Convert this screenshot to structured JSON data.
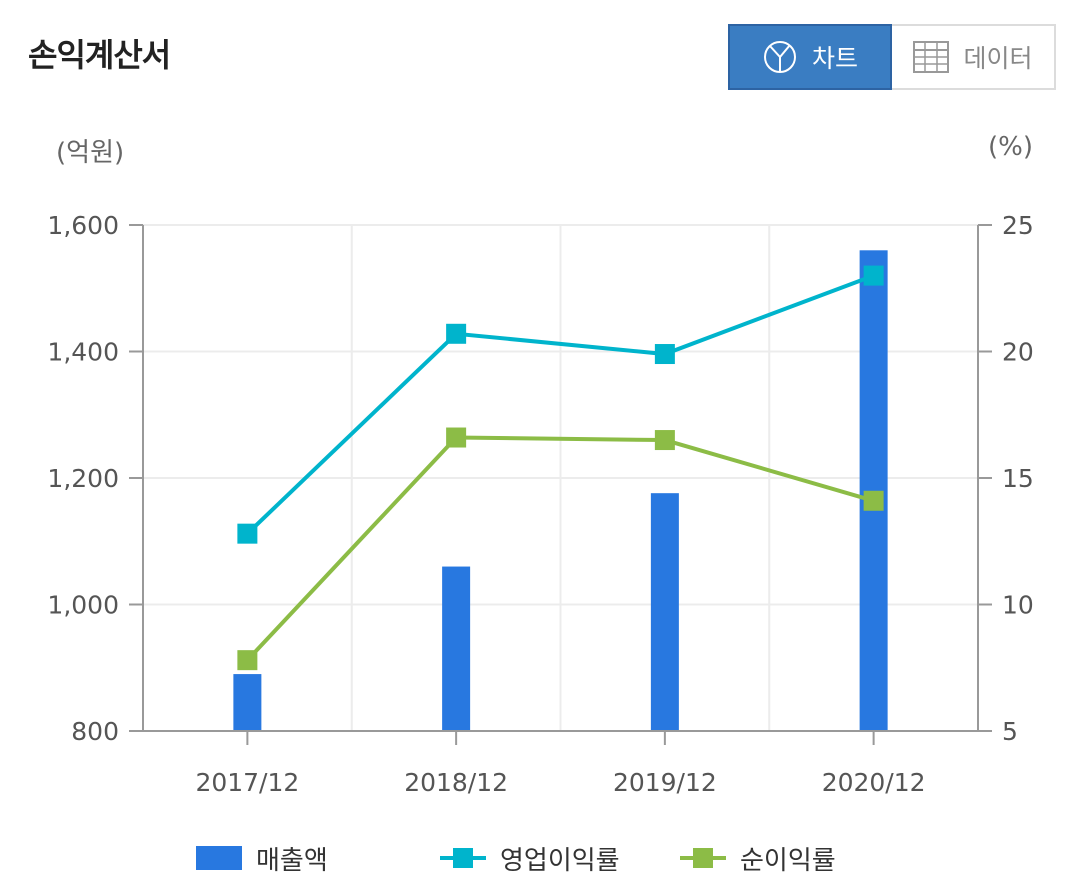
{
  "page": {
    "title": "손익계산서"
  },
  "view_toggle": {
    "chart_label": "차트",
    "data_label": "데이터",
    "selected": "차트"
  },
  "colors": {
    "bar": "#2878e0",
    "operating_margin": "#00b4cc",
    "net_margin": "#8cbc46",
    "toggle_active": "#3a7dc2"
  },
  "chart_data": {
    "type": "bar",
    "categories": [
      "2017/12",
      "2018/12",
      "2019/12",
      "2020/12"
    ],
    "y_left_unit": "(억원)",
    "y_right_unit": "(%)",
    "y_left_range": [
      800,
      1600
    ],
    "y_left_ticks": [
      "1,600",
      "1,400",
      "1,200",
      "1,000",
      "800"
    ],
    "y_right_range": [
      5,
      25
    ],
    "y_right_ticks": [
      "25",
      "20",
      "15",
      "10",
      "5"
    ],
    "grid": true,
    "legend_position": "bottom",
    "series": [
      {
        "name": "매출액",
        "type": "bar",
        "axis": "left",
        "values": [
          890,
          1060,
          1176,
          1560
        ]
      },
      {
        "name": "영업이익률",
        "type": "line",
        "axis": "right",
        "values": [
          12.8,
          20.7,
          19.9,
          23.0
        ]
      },
      {
        "name": "순이익률",
        "type": "line",
        "axis": "right",
        "values": [
          7.8,
          16.6,
          16.5,
          14.1
        ]
      }
    ]
  }
}
